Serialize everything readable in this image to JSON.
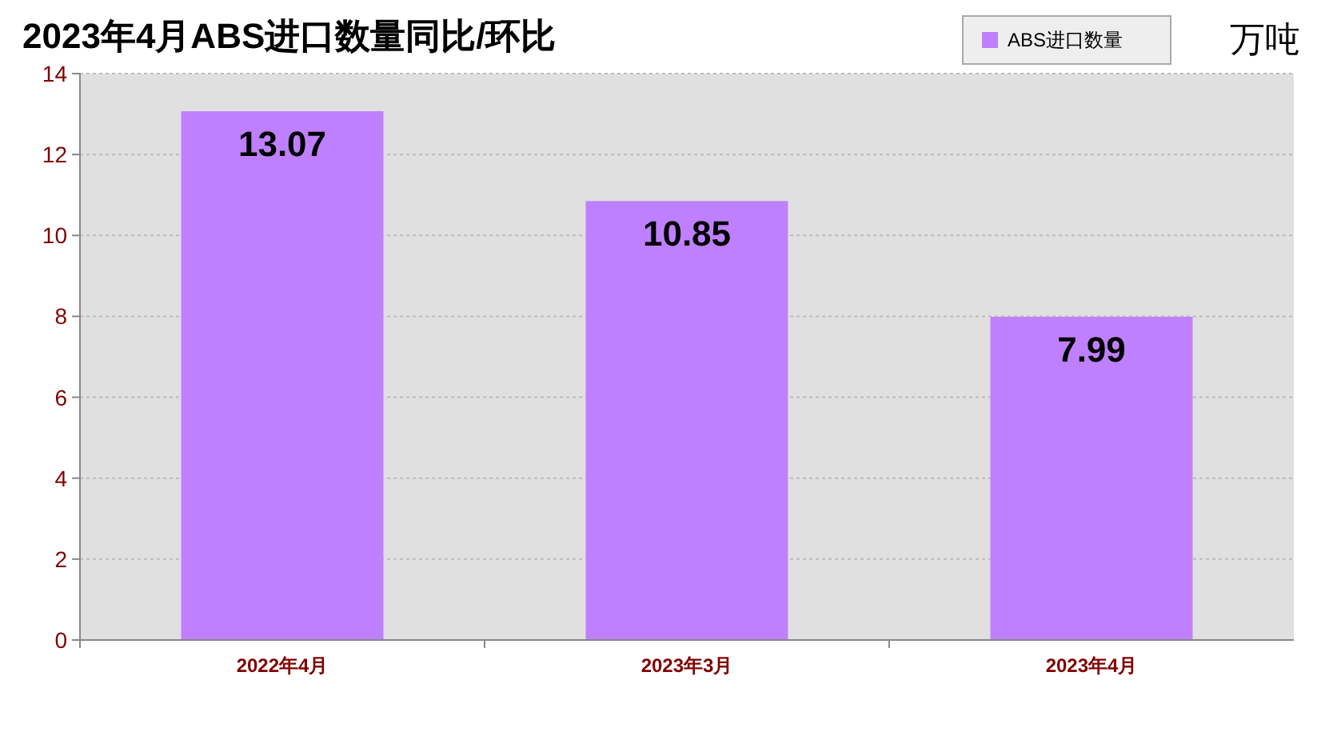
{
  "chart_data": {
    "type": "bar",
    "title": "2023年4月ABS进口数量同比/环比",
    "ylabel": "万吨",
    "categories": [
      "2022年4月",
      "2023年3月",
      "2023年4月"
    ],
    "series": [
      {
        "name": "ABS进口数量",
        "color": "#bf80ff",
        "values": [
          13.07,
          10.85,
          7.99
        ]
      }
    ],
    "ylim": [
      0,
      14
    ],
    "yticks": [
      0,
      2,
      4,
      6,
      8,
      10,
      12,
      14
    ],
    "grid": "y",
    "legend": "top right",
    "data_labels": true
  }
}
